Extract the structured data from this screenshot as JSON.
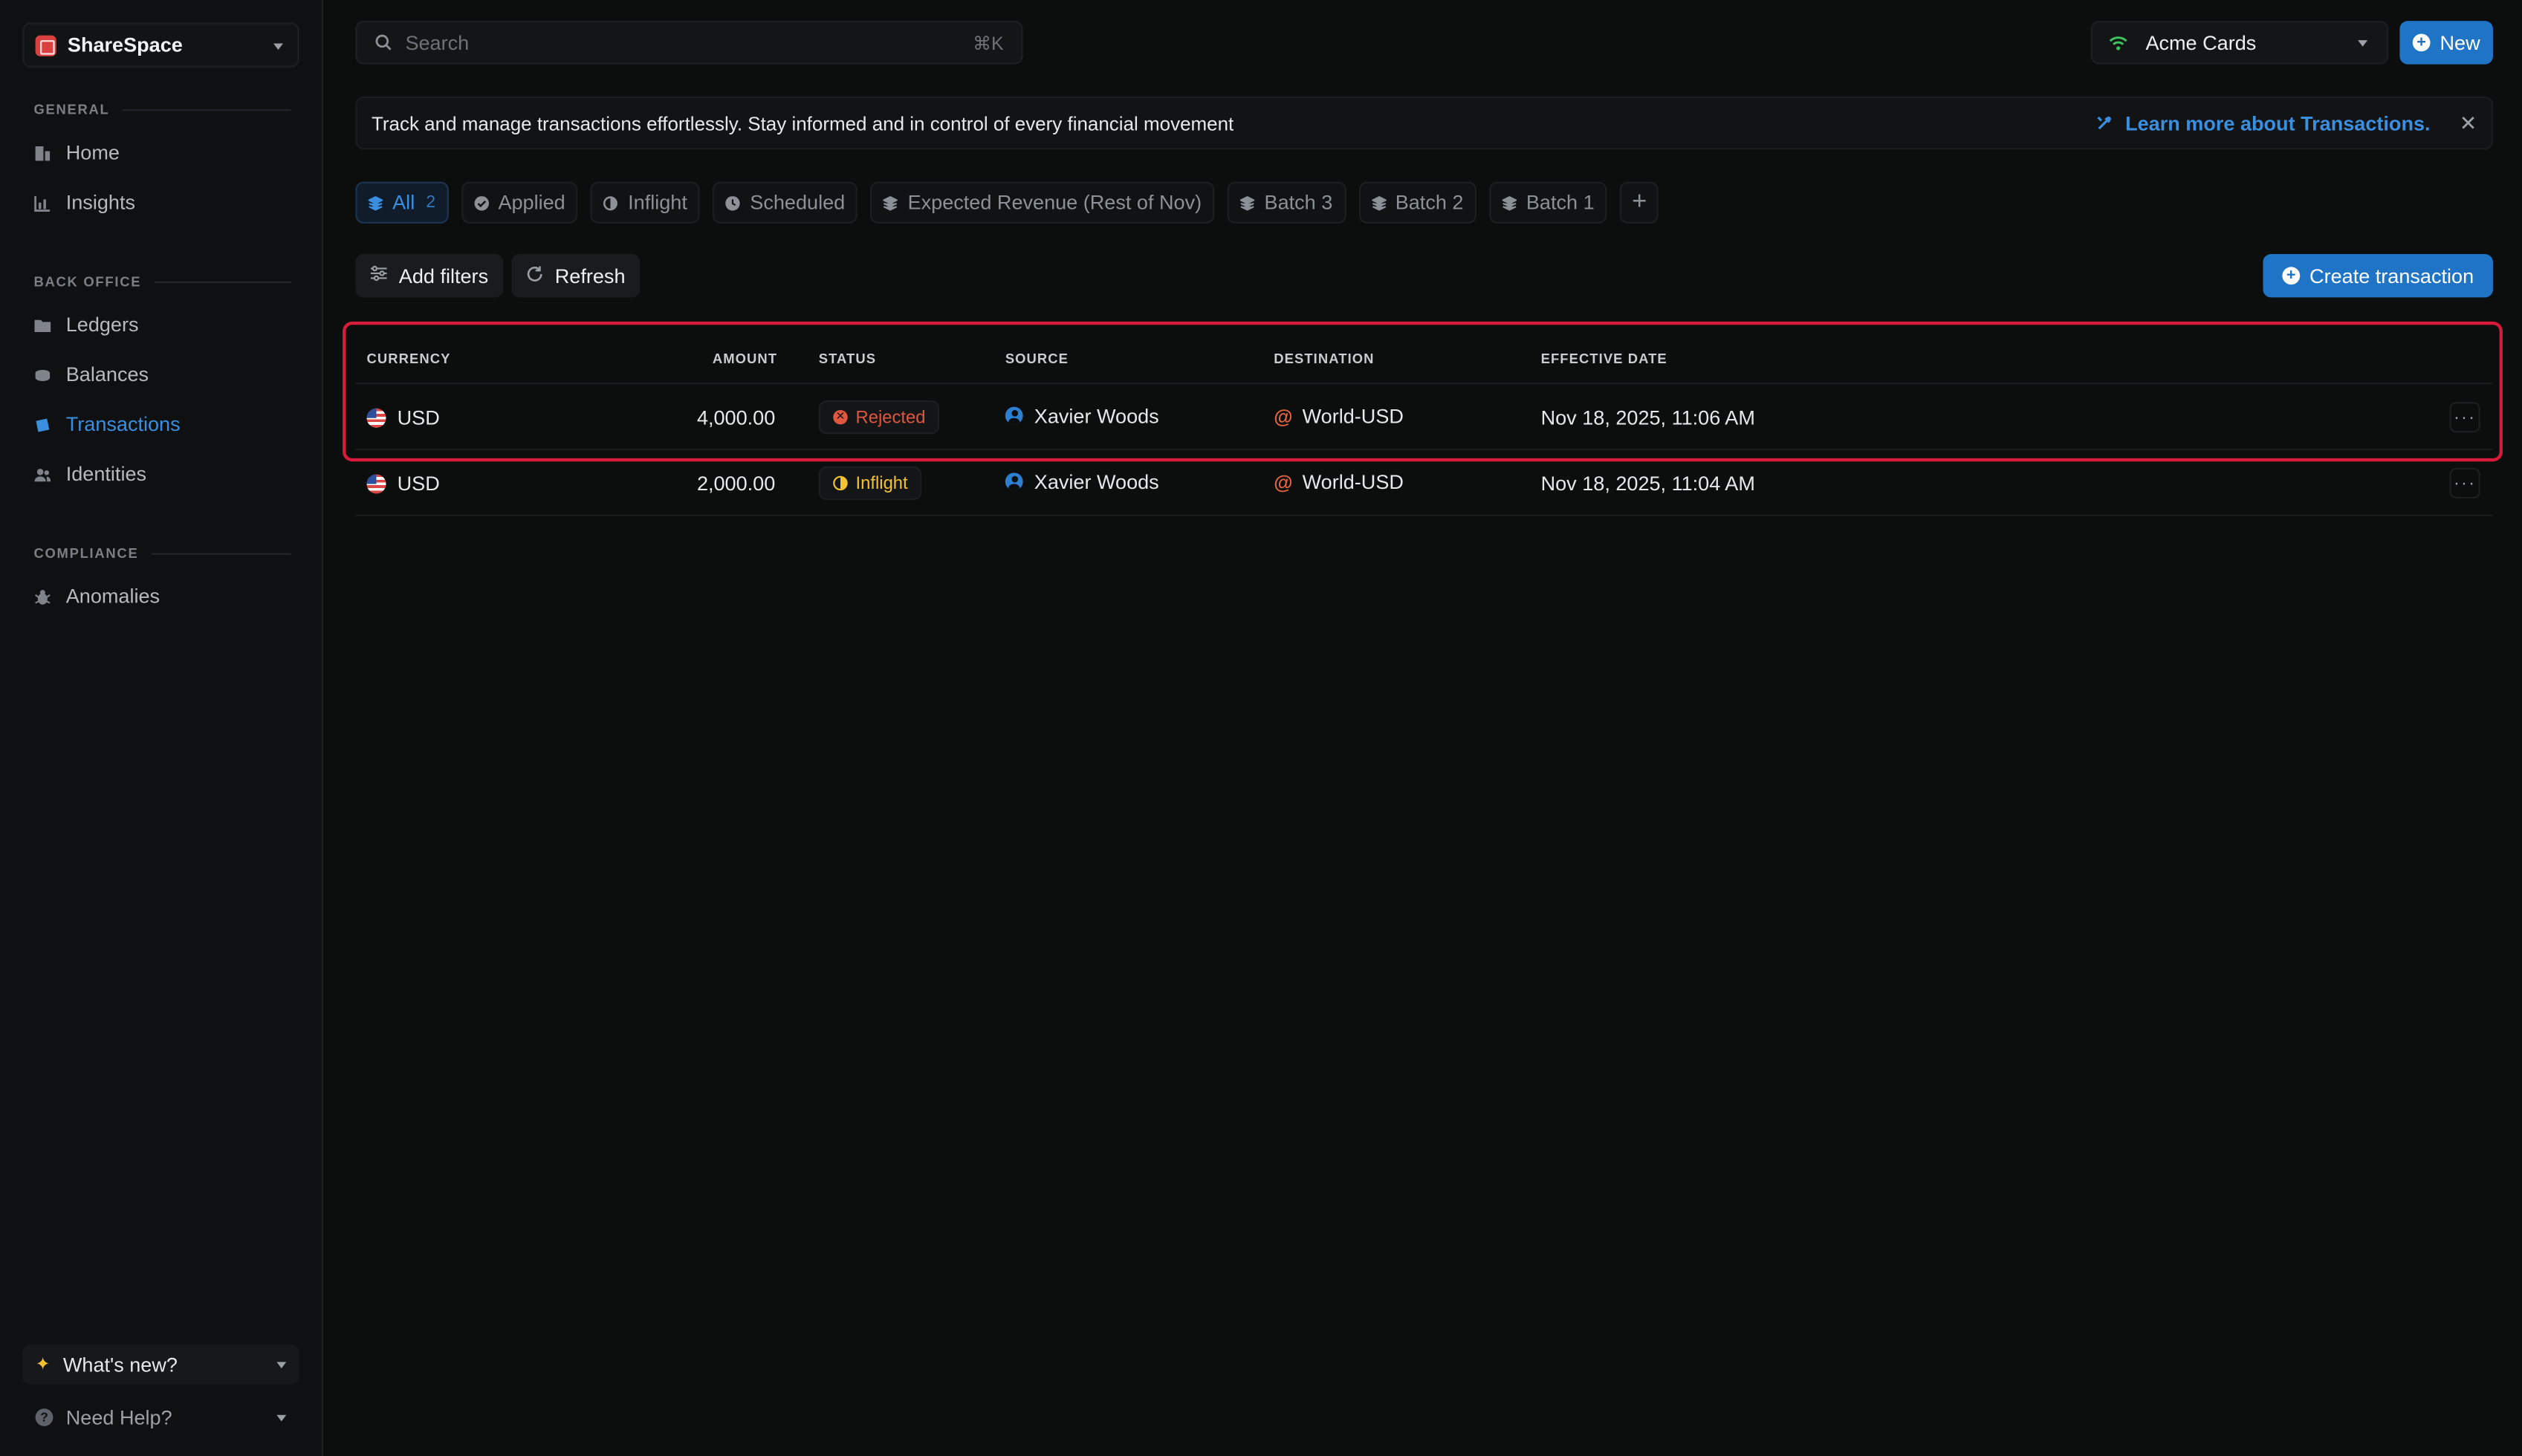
{
  "sidebar": {
    "org_name": "ShareSpace",
    "sections": {
      "general": "GENERAL",
      "back_office": "BACK OFFICE",
      "compliance": "COMPLIANCE"
    },
    "items": {
      "home": "Home",
      "insights": "Insights",
      "ledgers": "Ledgers",
      "balances": "Balances",
      "transactions": "Transactions",
      "identities": "Identities",
      "anomalies": "Anomalies"
    },
    "whats_new": "What's new?",
    "need_help": "Need Help?"
  },
  "topbar": {
    "search_placeholder": "Search",
    "search_shortcut": "⌘K",
    "workspace": "Acme Cards",
    "new_label": "New"
  },
  "banner": {
    "text": "Track and manage transactions effortlessly. Stay informed and in control of every financial movement",
    "link": "Learn more about Transactions."
  },
  "tabs": {
    "all": "All",
    "all_count": "2",
    "applied": "Applied",
    "inflight": "Inflight",
    "scheduled": "Scheduled",
    "expected": "Expected Revenue (Rest of Nov)",
    "batch3": "Batch 3",
    "batch2": "Batch 2",
    "batch1": "Batch 1"
  },
  "actions": {
    "add_filters": "Add filters",
    "refresh": "Refresh",
    "create": "Create transaction"
  },
  "table": {
    "headers": {
      "currency": "CURRENCY",
      "amount": "AMOUNT",
      "status": "STATUS",
      "source": "SOURCE",
      "destination": "DESTINATION",
      "effective_date": "EFFECTIVE DATE"
    },
    "rows": [
      {
        "currency": "USD",
        "amount": "4,000.00",
        "status": "Rejected",
        "source": "Xavier Woods",
        "destination": "World-USD",
        "effective_date": "Nov 18, 2025, 11:06 AM"
      },
      {
        "currency": "USD",
        "amount": "2,000.00",
        "status": "Inflight",
        "source": "Xavier Woods",
        "destination": "World-USD",
        "effective_date": "Nov 18, 2025, 11:04 AM"
      }
    ]
  },
  "colors": {
    "accent": "#1f74c6",
    "link": "#3b8fe0",
    "rejected": "#e0563f",
    "inflight": "#f2c232",
    "highlight": "#d81b3a"
  }
}
